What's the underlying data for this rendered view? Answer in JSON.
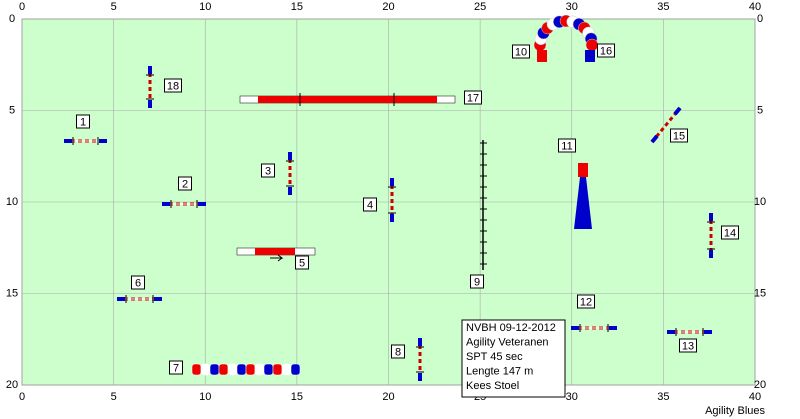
{
  "axes": {
    "xlim": [
      0,
      40
    ],
    "ylim": [
      0,
      20
    ],
    "xticks": [
      0,
      5,
      10,
      15,
      20,
      25,
      30,
      35,
      40
    ],
    "yticks": [
      0,
      5,
      10,
      15,
      20
    ]
  },
  "obstacles": [
    "1",
    "2",
    "3",
    "4",
    "5",
    "6",
    "7",
    "8",
    "9",
    "10",
    "11",
    "12",
    "13",
    "14",
    "15",
    "16",
    "17",
    "18"
  ],
  "info": [
    "NVBH 09-12-2012",
    "Agility Veteranen",
    "SPT 45 sec",
    "Lengte 147 m",
    "Kees Stoel"
  ],
  "footer": "Agility Blues"
}
